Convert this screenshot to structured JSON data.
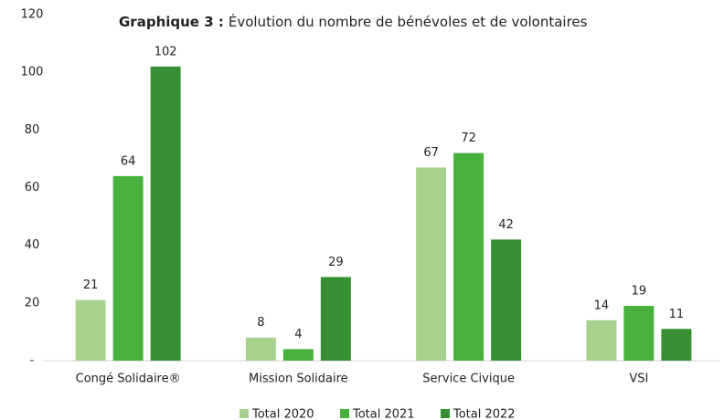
{
  "chart_data": {
    "type": "bar",
    "title_label": "Graphique 3 :",
    "title": "Évolution du nombre de bénévoles et de volontaires",
    "categories": [
      "Congé Solidaire®",
      "Mission Solidaire",
      "Service Civique",
      "VSI"
    ],
    "series": [
      {
        "name": "Total 2020",
        "color": "#a9d18e",
        "values": [
          21,
          8,
          67,
          14
        ]
      },
      {
        "name": "Total 2021",
        "color": "#48b13c",
        "values": [
          64,
          4,
          72,
          19
        ]
      },
      {
        "name": "Total 2022",
        "color": "#379034",
        "values": [
          102,
          29,
          42,
          11
        ]
      }
    ],
    "ylim": [
      0,
      120
    ],
    "yticks": [
      {
        "value": 0,
        "label": "-"
      },
      20,
      40,
      60,
      80,
      100,
      120
    ],
    "grid": false,
    "legend": "bottom"
  }
}
